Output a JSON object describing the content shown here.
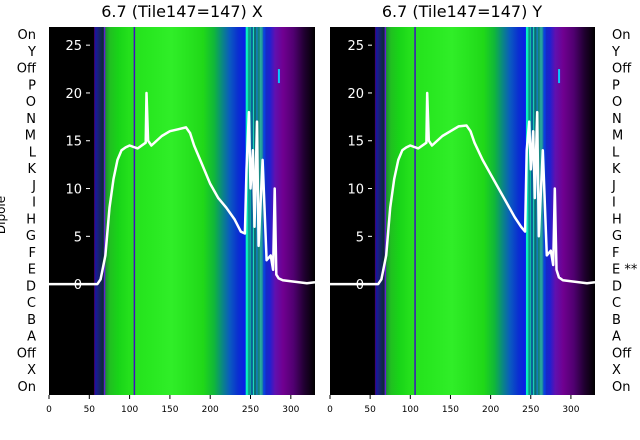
{
  "chart_data": [
    {
      "type": "heatmap",
      "title": "6.7 (Tile147=147) X",
      "xlabel": "",
      "ylabel": "Dipole",
      "x_ticks": [
        0,
        50,
        100,
        150,
        200,
        250,
        300
      ],
      "x_range": [
        0,
        330
      ],
      "y_categories": [
        "On",
        "X",
        "Off",
        "A",
        "B",
        "C",
        "D",
        "E",
        "F",
        "G",
        "H",
        "I",
        "J",
        "K",
        "L",
        "M",
        "N",
        "O",
        "P",
        "Off",
        "Y",
        "On"
      ],
      "overlay": {
        "type": "line",
        "y_ticks": [
          0,
          5,
          10,
          15,
          20,
          25
        ],
        "y_range": [
          -11.6,
          26.9
        ],
        "x": [
          0,
          60,
          64,
          70,
          75,
          80,
          85,
          90,
          95,
          100,
          110,
          120,
          121,
          123,
          127,
          140,
          150,
          160,
          170,
          175,
          180,
          190,
          200,
          210,
          220,
          230,
          238,
          243,
          245,
          248,
          250,
          253,
          255,
          258,
          260,
          265,
          270,
          275,
          278,
          280,
          282,
          285,
          290,
          300,
          310,
          320,
          330
        ],
        "y": [
          0,
          0,
          0.5,
          3,
          8,
          11,
          13,
          14,
          14.3,
          14.5,
          14.2,
          14.8,
          20,
          15,
          14.5,
          15.5,
          16,
          16.2,
          16.4,
          15.8,
          14.5,
          12.5,
          10.5,
          9,
          8,
          6.8,
          5.5,
          5.3,
          12,
          18,
          10,
          14,
          6,
          17,
          4,
          13,
          2.5,
          3,
          1.5,
          10,
          1,
          0.6,
          0.4,
          0.3,
          0.2,
          0.1,
          0.2
        ]
      }
    },
    {
      "type": "heatmap",
      "title": "6.7 (Tile147=147) Y",
      "xlabel": "",
      "ylabel": "",
      "x_ticks": [
        0,
        50,
        100,
        150,
        200,
        250,
        300
      ],
      "x_range": [
        0,
        330
      ],
      "y_categories": [
        "On",
        "X",
        "Off",
        "A",
        "B",
        "C",
        "D",
        "E **",
        "F",
        "G",
        "H",
        "I",
        "J",
        "K",
        "L",
        "M",
        "N",
        "O",
        "P",
        "Off",
        "Y",
        "On"
      ],
      "overlay": {
        "type": "line",
        "y_ticks": [
          0,
          5,
          10,
          15,
          20,
          25
        ],
        "y_range": [
          -11.6,
          26.9
        ],
        "x": [
          0,
          60,
          64,
          70,
          75,
          80,
          85,
          90,
          95,
          100,
          110,
          120,
          121,
          123,
          127,
          140,
          150,
          160,
          170,
          175,
          180,
          190,
          200,
          210,
          220,
          230,
          238,
          243,
          245,
          248,
          250,
          253,
          255,
          258,
          260,
          265,
          270,
          275,
          278,
          280,
          282,
          285,
          290,
          300,
          310,
          320,
          330
        ],
        "y": [
          0,
          0,
          0.5,
          3,
          8,
          11,
          13,
          14,
          14.3,
          14.5,
          14.2,
          14.8,
          20,
          15,
          14.5,
          15.5,
          16,
          16.5,
          16.6,
          16,
          14.8,
          13,
          11.5,
          10,
          8.5,
          7,
          6,
          5.5,
          14,
          17,
          12,
          16,
          9,
          18,
          5,
          14,
          3,
          3.5,
          2,
          10,
          1.5,
          0.7,
          0.4,
          0.3,
          0.2,
          0.1,
          0.2
        ]
      }
    }
  ]
}
